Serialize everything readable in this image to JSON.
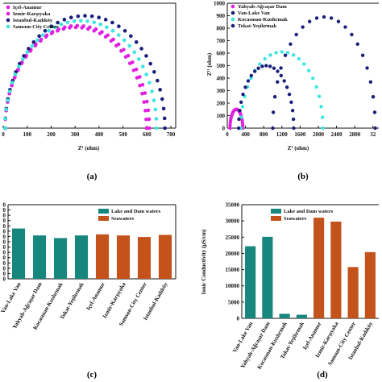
{
  "colors": {
    "magenta": "#e020e0",
    "navy": "#1b1f7a",
    "cyan": "#3ee6e0",
    "teal": "#17877d",
    "orange": "#c4521b"
  },
  "chart_data": [
    {
      "panel": "(a)",
      "type": "scatter",
      "xlabel": "Z¹ (ohm)",
      "xticks": [
        "0",
        "100",
        "200",
        "300",
        "400",
        "500",
        "600",
        "700"
      ],
      "xlim": [
        0,
        720
      ],
      "legend": [
        "Içel-Anamur",
        "Izmir-Karşıyaka",
        "Istanbul-Kadıköy",
        "Samsun-City Center"
      ],
      "legend_position": "top-left",
      "series": [
        {
          "name": "Içel-Anamur",
          "color": "magenta",
          "type": "semicircle",
          "x_start": 8,
          "x_end": 610,
          "peak": 310
        },
        {
          "name": "Izmir-Karşıyaka",
          "color": "magenta",
          "type": "semicircle",
          "x_start": 8,
          "x_end": 598,
          "peak": 305
        },
        {
          "name": "Istanbul-Kadıköy",
          "color": "navy",
          "type": "semicircle",
          "x_start": 8,
          "x_end": 675,
          "peak": 340
        },
        {
          "name": "Samsun-City Center",
          "color": "cyan",
          "type": "semicircle",
          "x_start": 8,
          "x_end": 640,
          "peak": 325
        }
      ]
    },
    {
      "panel": "(b)",
      "type": "scatter",
      "xlabel": "Z¹ (ohm)",
      "ylabel": "Z¹¹ (ohm)",
      "xticks": [
        "0",
        "400",
        "800",
        "1200",
        "1600",
        "2000",
        "2400",
        "2800",
        "32"
      ],
      "yticks": [
        "0",
        "100",
        "200",
        "300",
        "400",
        "500",
        "600",
        "700",
        "800",
        "900",
        "1000"
      ],
      "xlim": [
        0,
        3300
      ],
      "ylim": [
        0,
        1000
      ],
      "legend": [
        "Yahyah-Ağcaşar Dam",
        "Van-Lake Van",
        "Kocasınan-Kızılırmak",
        "Tokat-Yeşilırmak"
      ],
      "legend_position": "top-left",
      "series": [
        {
          "name": "Yahyah-Ağcaşar Dam",
          "color": "magenta",
          "type": "semicircle",
          "x_start": 60,
          "x_end": 340,
          "peak": 150
        },
        {
          "name": "Van-Lake Van",
          "color": "navy",
          "type": "semicircle",
          "x_start": 1000,
          "x_end": 3250,
          "peak": 890
        },
        {
          "name": "Kocasınan-Kızılırmak",
          "color": "cyan",
          "type": "semicircle",
          "x_start": 300,
          "x_end": 2100,
          "peak": 610
        },
        {
          "name": "Tokat-Yeşilırmak",
          "color": "navy",
          "type": "semicircle",
          "x_start": 250,
          "x_end": 1460,
          "peak": 500
        }
      ]
    },
    {
      "panel": "(c)",
      "type": "bar",
      "yticks": [
        "0",
        "0",
        "0",
        "0",
        "0",
        "0",
        "0",
        "0",
        "0",
        "0",
        "0",
        "0",
        "0",
        "0",
        "0"
      ],
      "categories": [
        "Van-Lake Van",
        "Yahyah-Ağcaşar Dam",
        "Kocasınan-Kızılırmak",
        "Tokat-Yeşilırmak",
        "Içel-Anamur",
        "Izmir-Karşıyaka",
        "Samsun-City Center",
        "Istanbul-Kadıköy"
      ],
      "legend": [
        "Lake and Dam waters",
        "Seawaters"
      ],
      "legend_position": "top-right",
      "ylim": [
        0,
        14
      ],
      "values": [
        9.5,
        8.2,
        7.7,
        8.2,
        8.4,
        8.2,
        7.9,
        8.3
      ],
      "groups": [
        0,
        0,
        0,
        0,
        1,
        1,
        1,
        1
      ]
    },
    {
      "panel": "(d)",
      "type": "bar",
      "ylabel": "Ionic Conductivity (µS/cm)",
      "yticks": [
        "0",
        "5000",
        "10000",
        "15000",
        "20000",
        "25000",
        "30000",
        "35000"
      ],
      "categories": [
        "Van-Lake Van",
        "Yahyah-Ağcaşar Dam",
        "Kocasınan-Kızılırmak",
        "Tokat-Yeşilırmak",
        "Içel-Anamur",
        "Izmir-Karşıyaka",
        "Samsun-City Center",
        "Istanbul-Kadıköy"
      ],
      "legend": [
        "Lake and Dam waters",
        "Seawaters"
      ],
      "legend_position": "top-center",
      "ylim": [
        0,
        35000
      ],
      "values": [
        22200,
        25100,
        1400,
        1100,
        31000,
        29800,
        15800,
        20400
      ],
      "groups": [
        0,
        0,
        0,
        0,
        1,
        1,
        1,
        1
      ]
    }
  ]
}
